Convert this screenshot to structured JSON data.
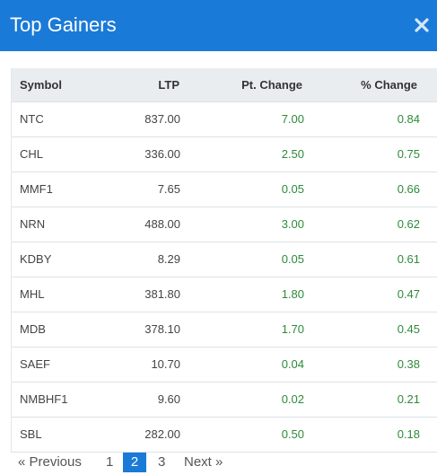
{
  "header": {
    "title": "Top Gainers",
    "close_icon": "close-icon"
  },
  "table": {
    "columns": [
      "Symbol",
      "LTP",
      "Pt. Change",
      "% Change"
    ],
    "rows": [
      {
        "symbol": "NTC",
        "ltp": "837.00",
        "pt_change": "7.00",
        "pct_change": "0.84"
      },
      {
        "symbol": "CHL",
        "ltp": "336.00",
        "pt_change": "2.50",
        "pct_change": "0.75"
      },
      {
        "symbol": "MMF1",
        "ltp": "7.65",
        "pt_change": "0.05",
        "pct_change": "0.66"
      },
      {
        "symbol": "NRN",
        "ltp": "488.00",
        "pt_change": "3.00",
        "pct_change": "0.62"
      },
      {
        "symbol": "KDBY",
        "ltp": "8.29",
        "pt_change": "0.05",
        "pct_change": "0.61"
      },
      {
        "symbol": "MHL",
        "ltp": "381.80",
        "pt_change": "1.80",
        "pct_change": "0.47"
      },
      {
        "symbol": "MDB",
        "ltp": "378.10",
        "pt_change": "1.70",
        "pct_change": "0.45"
      },
      {
        "symbol": "SAEF",
        "ltp": "10.70",
        "pt_change": "0.04",
        "pct_change": "0.38"
      },
      {
        "symbol": "NMBHF1",
        "ltp": "9.60",
        "pt_change": "0.02",
        "pct_change": "0.21"
      },
      {
        "symbol": "SBL",
        "ltp": "282.00",
        "pt_change": "0.50",
        "pct_change": "0.18"
      }
    ]
  },
  "pagination": {
    "previous": "« Previous",
    "pages": [
      "1",
      "2",
      "3"
    ],
    "active_page": "2",
    "next": "Next »"
  },
  "colors": {
    "accent": "#1a7ad7",
    "positive": "#2e8b3a",
    "header_row": "#eaedf0"
  }
}
